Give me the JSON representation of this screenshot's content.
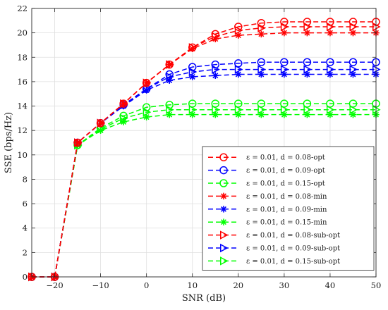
{
  "chart_data": {
    "type": "line",
    "xlabel": "SNR (dB)",
    "ylabel": "SSE (bps/Hz)",
    "xlim": [
      -25,
      50
    ],
    "ylim": [
      0,
      22
    ],
    "xticks": [
      -20,
      -10,
      0,
      10,
      20,
      30,
      40,
      50
    ],
    "yticks": [
      0,
      2,
      4,
      6,
      8,
      10,
      12,
      14,
      16,
      18,
      20,
      22
    ],
    "grid": true,
    "legend_position": "bottom-right",
    "series": [
      {
        "name": "ε = 0.01, d = 0.08-opt",
        "color": "#ff0000",
        "marker": "circle",
        "x": [
          -25,
          -20,
          -15,
          -10,
          -5,
          0,
          5,
          10,
          15,
          20,
          25,
          30,
          35,
          40,
          45,
          50
        ],
        "y": [
          0,
          0,
          11,
          12.6,
          14.2,
          15.9,
          17.4,
          18.8,
          19.9,
          20.5,
          20.8,
          20.9,
          20.9,
          20.9,
          20.9,
          20.9
        ]
      },
      {
        "name": "ε = 0.01, d = 0.09-opt",
        "color": "#0000ff",
        "marker": "circle",
        "x": [
          -25,
          -20,
          -15,
          -10,
          -5,
          0,
          5,
          10,
          15,
          20,
          25,
          30,
          35,
          40,
          45,
          50
        ],
        "y": [
          0,
          0,
          11,
          12.6,
          14.1,
          15.4,
          16.6,
          17.2,
          17.4,
          17.5,
          17.6,
          17.6,
          17.6,
          17.6,
          17.6,
          17.6
        ]
      },
      {
        "name": "ε = 0.01, d = 0.15-opt",
        "color": "#00ff00",
        "marker": "circle",
        "x": [
          -25,
          -20,
          -15,
          -10,
          -5,
          0,
          5,
          10,
          15,
          20,
          25,
          30,
          35,
          40,
          45,
          50
        ],
        "y": [
          0,
          0,
          10.8,
          12.2,
          13.2,
          13.9,
          14.1,
          14.2,
          14.2,
          14.2,
          14.2,
          14.2,
          14.2,
          14.2,
          14.2,
          14.2
        ]
      },
      {
        "name": "ε = 0.01, d = 0.08-min",
        "color": "#ff0000",
        "marker": "star",
        "x": [
          -25,
          -20,
          -15,
          -10,
          -5,
          0,
          5,
          10,
          15,
          20,
          25,
          30,
          35,
          40,
          45,
          50
        ],
        "y": [
          0,
          0,
          11,
          12.6,
          14.2,
          15.9,
          17.4,
          18.7,
          19.5,
          19.8,
          19.9,
          20.0,
          20.0,
          20.0,
          20.0,
          20.0
        ]
      },
      {
        "name": "ε = 0.01, d = 0.09-min",
        "color": "#0000ff",
        "marker": "star",
        "x": [
          -25,
          -20,
          -15,
          -10,
          -5,
          0,
          5,
          10,
          15,
          20,
          25,
          30,
          35,
          40,
          45,
          50
        ],
        "y": [
          0,
          0,
          11,
          12.6,
          14.0,
          15.3,
          16.1,
          16.4,
          16.5,
          16.6,
          16.6,
          16.6,
          16.6,
          16.6,
          16.6,
          16.6
        ]
      },
      {
        "name": "ε = 0.01, d = 0.15-min",
        "color": "#00ff00",
        "marker": "star",
        "x": [
          -25,
          -20,
          -15,
          -10,
          -5,
          0,
          5,
          10,
          15,
          20,
          25,
          30,
          35,
          40,
          45,
          50
        ],
        "y": [
          0,
          0,
          10.8,
          12.0,
          12.7,
          13.1,
          13.3,
          13.3,
          13.3,
          13.3,
          13.3,
          13.3,
          13.3,
          13.3,
          13.3,
          13.3
        ]
      },
      {
        "name": "ε = 0.01, d = 0.08-sub-opt",
        "color": "#ff0000",
        "marker": "triangle-right",
        "x": [
          -25,
          -20,
          -15,
          -10,
          -5,
          0,
          5,
          10,
          15,
          20,
          25,
          30,
          35,
          40,
          45,
          50
        ],
        "y": [
          0,
          0,
          11,
          12.6,
          14.2,
          15.9,
          17.4,
          18.8,
          19.7,
          20.2,
          20.4,
          20.5,
          20.5,
          20.5,
          20.5,
          20.5
        ]
      },
      {
        "name": "ε = 0.01, d = 0.09-sub-opt",
        "color": "#0000ff",
        "marker": "triangle-right",
        "x": [
          -25,
          -20,
          -15,
          -10,
          -5,
          0,
          5,
          10,
          15,
          20,
          25,
          30,
          35,
          40,
          45,
          50
        ],
        "y": [
          0,
          0,
          11,
          12.6,
          14.1,
          15.4,
          16.4,
          16.8,
          17.0,
          17.0,
          17.0,
          17.0,
          17.0,
          17.0,
          17.0,
          17.0
        ]
      },
      {
        "name": "ε = 0.01, d = 0.15-sub-opt",
        "color": "#00ff00",
        "marker": "triangle-right",
        "x": [
          -25,
          -20,
          -15,
          -10,
          -5,
          0,
          5,
          10,
          15,
          20,
          25,
          30,
          35,
          40,
          45,
          50
        ],
        "y": [
          0,
          0,
          10.8,
          12.1,
          13.0,
          13.5,
          13.7,
          13.7,
          13.7,
          13.7,
          13.7,
          13.7,
          13.7,
          13.7,
          13.7,
          13.7
        ]
      }
    ]
  }
}
